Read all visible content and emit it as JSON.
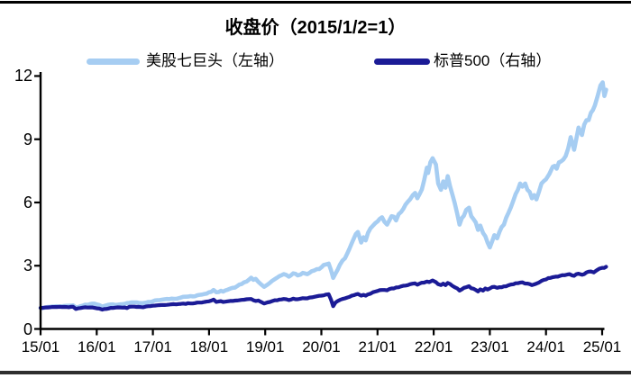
{
  "page": {
    "background": "#ffffff",
    "top_border_color": "#000000",
    "bottom_border_color": "#2e2e2e"
  },
  "chart_data": {
    "type": "line",
    "title": "收盘价（2015/1/2=1）",
    "x_tick_labels": [
      "15/01",
      "16/01",
      "17/01",
      "18/01",
      "19/01",
      "20/01",
      "21/01",
      "22/01",
      "23/01",
      "24/01",
      "25/01"
    ],
    "y_left_ticks": [
      0,
      3,
      6,
      9,
      12
    ],
    "y_left_lim": [
      0,
      12
    ],
    "x_lim": [
      2015.0,
      2025.07
    ],
    "grid": false,
    "legend_position": "top",
    "right_axis_labels_visible": false,
    "axis_color": "#000000",
    "note": "标普500 plotted on unlabeled right axis; values read as indexed levels (2015/1/2=1).",
    "series": [
      {
        "name": "美股七巨头（左轴）",
        "axis": "left",
        "color": "#A6CDF2",
        "points": [
          [
            2015.0,
            1.0
          ],
          [
            2015.08,
            1.01
          ],
          [
            2015.17,
            1.05
          ],
          [
            2015.25,
            1.07
          ],
          [
            2015.33,
            1.06
          ],
          [
            2015.42,
            1.09
          ],
          [
            2015.5,
            1.1
          ],
          [
            2015.58,
            1.12
          ],
          [
            2015.63,
            1.02
          ],
          [
            2015.71,
            1.08
          ],
          [
            2015.79,
            1.15
          ],
          [
            2015.88,
            1.18
          ],
          [
            2015.96,
            1.2
          ],
          [
            2016.04,
            1.14
          ],
          [
            2016.1,
            1.06
          ],
          [
            2016.17,
            1.12
          ],
          [
            2016.25,
            1.16
          ],
          [
            2016.33,
            1.14
          ],
          [
            2016.42,
            1.17
          ],
          [
            2016.5,
            1.19
          ],
          [
            2016.58,
            1.24
          ],
          [
            2016.67,
            1.26
          ],
          [
            2016.75,
            1.24
          ],
          [
            2016.83,
            1.23
          ],
          [
            2016.92,
            1.28
          ],
          [
            2017.0,
            1.31
          ],
          [
            2017.08,
            1.36
          ],
          [
            2017.17,
            1.39
          ],
          [
            2017.25,
            1.42
          ],
          [
            2017.33,
            1.44
          ],
          [
            2017.42,
            1.43
          ],
          [
            2017.5,
            1.49
          ],
          [
            2017.58,
            1.53
          ],
          [
            2017.67,
            1.56
          ],
          [
            2017.75,
            1.55
          ],
          [
            2017.83,
            1.62
          ],
          [
            2017.92,
            1.66
          ],
          [
            2018.0,
            1.74
          ],
          [
            2018.08,
            1.85
          ],
          [
            2018.13,
            1.74
          ],
          [
            2018.21,
            1.81
          ],
          [
            2018.25,
            1.77
          ],
          [
            2018.33,
            1.86
          ],
          [
            2018.42,
            1.95
          ],
          [
            2018.5,
            2.03
          ],
          [
            2018.58,
            2.13
          ],
          [
            2018.67,
            2.25
          ],
          [
            2018.75,
            2.43
          ],
          [
            2018.79,
            2.33
          ],
          [
            2018.83,
            2.38
          ],
          [
            2018.88,
            2.23
          ],
          [
            2018.92,
            2.13
          ],
          [
            2018.98,
            2.0
          ],
          [
            2019.04,
            2.1
          ],
          [
            2019.08,
            2.18
          ],
          [
            2019.17,
            2.36
          ],
          [
            2019.25,
            2.5
          ],
          [
            2019.33,
            2.6
          ],
          [
            2019.42,
            2.48
          ],
          [
            2019.5,
            2.64
          ],
          [
            2019.58,
            2.54
          ],
          [
            2019.67,
            2.66
          ],
          [
            2019.75,
            2.6
          ],
          [
            2019.83,
            2.74
          ],
          [
            2019.92,
            2.84
          ],
          [
            2020.0,
            2.92
          ],
          [
            2020.08,
            3.06
          ],
          [
            2020.13,
            3.1
          ],
          [
            2020.17,
            2.8
          ],
          [
            2020.21,
            2.42
          ],
          [
            2020.25,
            2.62
          ],
          [
            2020.33,
            3.05
          ],
          [
            2020.42,
            3.35
          ],
          [
            2020.5,
            3.8
          ],
          [
            2020.58,
            4.3
          ],
          [
            2020.65,
            4.6
          ],
          [
            2020.71,
            4.1
          ],
          [
            2020.75,
            4.35
          ],
          [
            2020.79,
            4.2
          ],
          [
            2020.83,
            4.55
          ],
          [
            2020.92,
            4.9
          ],
          [
            2021.0,
            5.1
          ],
          [
            2021.08,
            5.3
          ],
          [
            2021.17,
            4.95
          ],
          [
            2021.21,
            5.15
          ],
          [
            2021.25,
            5.35
          ],
          [
            2021.33,
            5.15
          ],
          [
            2021.42,
            5.55
          ],
          [
            2021.5,
            5.9
          ],
          [
            2021.58,
            6.15
          ],
          [
            2021.63,
            6.35
          ],
          [
            2021.67,
            6.45
          ],
          [
            2021.71,
            6.2
          ],
          [
            2021.75,
            6.4
          ],
          [
            2021.83,
            7.05
          ],
          [
            2021.88,
            7.65
          ],
          [
            2021.9,
            7.4
          ],
          [
            2021.94,
            7.9
          ],
          [
            2021.98,
            8.1
          ],
          [
            2022.04,
            7.8
          ],
          [
            2022.08,
            6.9
          ],
          [
            2022.13,
            6.6
          ],
          [
            2022.17,
            7.0
          ],
          [
            2022.21,
            6.7
          ],
          [
            2022.25,
            7.25
          ],
          [
            2022.33,
            6.4
          ],
          [
            2022.42,
            5.45
          ],
          [
            2022.46,
            4.95
          ],
          [
            2022.5,
            5.25
          ],
          [
            2022.58,
            5.65
          ],
          [
            2022.63,
            5.75
          ],
          [
            2022.67,
            5.35
          ],
          [
            2022.75,
            5.05
          ],
          [
            2022.79,
            4.7
          ],
          [
            2022.83,
            4.9
          ],
          [
            2022.88,
            4.55
          ],
          [
            2022.92,
            4.4
          ],
          [
            2022.96,
            4.1
          ],
          [
            2023.0,
            3.87
          ],
          [
            2023.04,
            4.15
          ],
          [
            2023.08,
            4.45
          ],
          [
            2023.13,
            4.3
          ],
          [
            2023.17,
            4.6
          ],
          [
            2023.25,
            4.95
          ],
          [
            2023.33,
            5.5
          ],
          [
            2023.42,
            6.1
          ],
          [
            2023.5,
            6.6
          ],
          [
            2023.54,
            6.9
          ],
          [
            2023.58,
            6.75
          ],
          [
            2023.63,
            6.9
          ],
          [
            2023.67,
            6.6
          ],
          [
            2023.71,
            6.5
          ],
          [
            2023.75,
            6.2
          ],
          [
            2023.79,
            6.35
          ],
          [
            2023.83,
            6.15
          ],
          [
            2023.88,
            6.55
          ],
          [
            2023.92,
            6.9
          ],
          [
            2024.0,
            7.1
          ],
          [
            2024.06,
            7.35
          ],
          [
            2024.12,
            7.7
          ],
          [
            2024.19,
            7.6
          ],
          [
            2024.27,
            7.95
          ],
          [
            2024.35,
            8.2
          ],
          [
            2024.44,
            9.1
          ],
          [
            2024.5,
            8.5
          ],
          [
            2024.58,
            9.55
          ],
          [
            2024.64,
            9.2
          ],
          [
            2024.72,
            9.9
          ],
          [
            2024.8,
            10.25
          ],
          [
            2024.87,
            10.6
          ],
          [
            2024.92,
            11.05
          ],
          [
            2024.97,
            11.55
          ],
          [
            2025.01,
            11.7
          ],
          [
            2025.04,
            11.05
          ],
          [
            2025.07,
            11.35
          ]
        ]
      },
      {
        "name": "标普500（右轴）",
        "axis": "right",
        "color": "#1B1B96",
        "points": [
          [
            2015.0,
            1.0
          ],
          [
            2015.13,
            1.02
          ],
          [
            2015.25,
            1.04
          ],
          [
            2015.38,
            1.04
          ],
          [
            2015.5,
            1.03
          ],
          [
            2015.58,
            1.05
          ],
          [
            2015.63,
            0.95
          ],
          [
            2015.71,
            0.99
          ],
          [
            2015.79,
            1.03
          ],
          [
            2015.88,
            1.02
          ],
          [
            2015.96,
            1.0
          ],
          [
            2016.04,
            0.97
          ],
          [
            2016.1,
            0.92
          ],
          [
            2016.17,
            0.95
          ],
          [
            2016.25,
            1.0
          ],
          [
            2016.33,
            1.01
          ],
          [
            2016.42,
            1.02
          ],
          [
            2016.5,
            1.02
          ],
          [
            2016.54,
            0.99
          ],
          [
            2016.58,
            1.05
          ],
          [
            2016.67,
            1.06
          ],
          [
            2016.75,
            1.05
          ],
          [
            2016.83,
            1.03
          ],
          [
            2016.92,
            1.08
          ],
          [
            2017.0,
            1.1
          ],
          [
            2017.17,
            1.14
          ],
          [
            2017.33,
            1.17
          ],
          [
            2017.5,
            1.19
          ],
          [
            2017.67,
            1.21
          ],
          [
            2017.83,
            1.25
          ],
          [
            2017.92,
            1.28
          ],
          [
            2018.0,
            1.31
          ],
          [
            2018.08,
            1.39
          ],
          [
            2018.13,
            1.28
          ],
          [
            2018.21,
            1.32
          ],
          [
            2018.25,
            1.28
          ],
          [
            2018.33,
            1.31
          ],
          [
            2018.42,
            1.33
          ],
          [
            2018.5,
            1.35
          ],
          [
            2018.58,
            1.38
          ],
          [
            2018.67,
            1.41
          ],
          [
            2018.75,
            1.42
          ],
          [
            2018.79,
            1.36
          ],
          [
            2018.83,
            1.33
          ],
          [
            2018.88,
            1.35
          ],
          [
            2018.92,
            1.29
          ],
          [
            2018.98,
            1.21
          ],
          [
            2019.04,
            1.26
          ],
          [
            2019.17,
            1.36
          ],
          [
            2019.25,
            1.39
          ],
          [
            2019.33,
            1.42
          ],
          [
            2019.42,
            1.37
          ],
          [
            2019.5,
            1.44
          ],
          [
            2019.58,
            1.41
          ],
          [
            2019.67,
            1.46
          ],
          [
            2019.75,
            1.45
          ],
          [
            2019.83,
            1.5
          ],
          [
            2019.92,
            1.55
          ],
          [
            2020.0,
            1.58
          ],
          [
            2020.08,
            1.63
          ],
          [
            2020.13,
            1.65
          ],
          [
            2020.17,
            1.4
          ],
          [
            2020.21,
            1.08
          ],
          [
            2020.25,
            1.25
          ],
          [
            2020.33,
            1.38
          ],
          [
            2020.42,
            1.45
          ],
          [
            2020.5,
            1.52
          ],
          [
            2020.58,
            1.6
          ],
          [
            2020.65,
            1.66
          ],
          [
            2020.71,
            1.58
          ],
          [
            2020.75,
            1.62
          ],
          [
            2020.79,
            1.58
          ],
          [
            2020.83,
            1.64
          ],
          [
            2020.92,
            1.74
          ],
          [
            2021.0,
            1.8
          ],
          [
            2021.08,
            1.85
          ],
          [
            2021.17,
            1.83
          ],
          [
            2021.25,
            1.92
          ],
          [
            2021.33,
            1.97
          ],
          [
            2021.42,
            2.02
          ],
          [
            2021.5,
            2.06
          ],
          [
            2021.58,
            2.12
          ],
          [
            2021.67,
            2.16
          ],
          [
            2021.71,
            2.1
          ],
          [
            2021.75,
            2.15
          ],
          [
            2021.83,
            2.2
          ],
          [
            2021.88,
            2.25
          ],
          [
            2021.92,
            2.22
          ],
          [
            2021.98,
            2.3
          ],
          [
            2022.04,
            2.22
          ],
          [
            2022.08,
            2.12
          ],
          [
            2022.13,
            2.08
          ],
          [
            2022.17,
            2.15
          ],
          [
            2022.21,
            2.08
          ],
          [
            2022.25,
            2.18
          ],
          [
            2022.33,
            2.05
          ],
          [
            2022.42,
            1.92
          ],
          [
            2022.46,
            1.82
          ],
          [
            2022.5,
            1.88
          ],
          [
            2022.58,
            1.98
          ],
          [
            2022.63,
            2.03
          ],
          [
            2022.67,
            1.93
          ],
          [
            2022.75,
            1.85
          ],
          [
            2022.79,
            1.78
          ],
          [
            2022.83,
            1.88
          ],
          [
            2022.88,
            1.82
          ],
          [
            2022.92,
            1.92
          ],
          [
            2022.96,
            1.87
          ],
          [
            2023.0,
            1.92
          ],
          [
            2023.08,
            2.0
          ],
          [
            2023.13,
            1.95
          ],
          [
            2023.17,
            1.98
          ],
          [
            2023.25,
            2.02
          ],
          [
            2023.33,
            2.07
          ],
          [
            2023.42,
            2.12
          ],
          [
            2023.5,
            2.17
          ],
          [
            2023.58,
            2.21
          ],
          [
            2023.67,
            2.15
          ],
          [
            2023.75,
            2.08
          ],
          [
            2023.83,
            2.15
          ],
          [
            2023.92,
            2.28
          ],
          [
            2024.0,
            2.35
          ],
          [
            2024.08,
            2.42
          ],
          [
            2024.17,
            2.48
          ],
          [
            2024.25,
            2.52
          ],
          [
            2024.33,
            2.55
          ],
          [
            2024.42,
            2.6
          ],
          [
            2024.5,
            2.52
          ],
          [
            2024.58,
            2.62
          ],
          [
            2024.64,
            2.57
          ],
          [
            2024.72,
            2.68
          ],
          [
            2024.8,
            2.73
          ],
          [
            2024.85,
            2.68
          ],
          [
            2024.9,
            2.78
          ],
          [
            2024.95,
            2.86
          ],
          [
            2025.0,
            2.9
          ],
          [
            2025.07,
            2.95
          ]
        ]
      }
    ]
  }
}
